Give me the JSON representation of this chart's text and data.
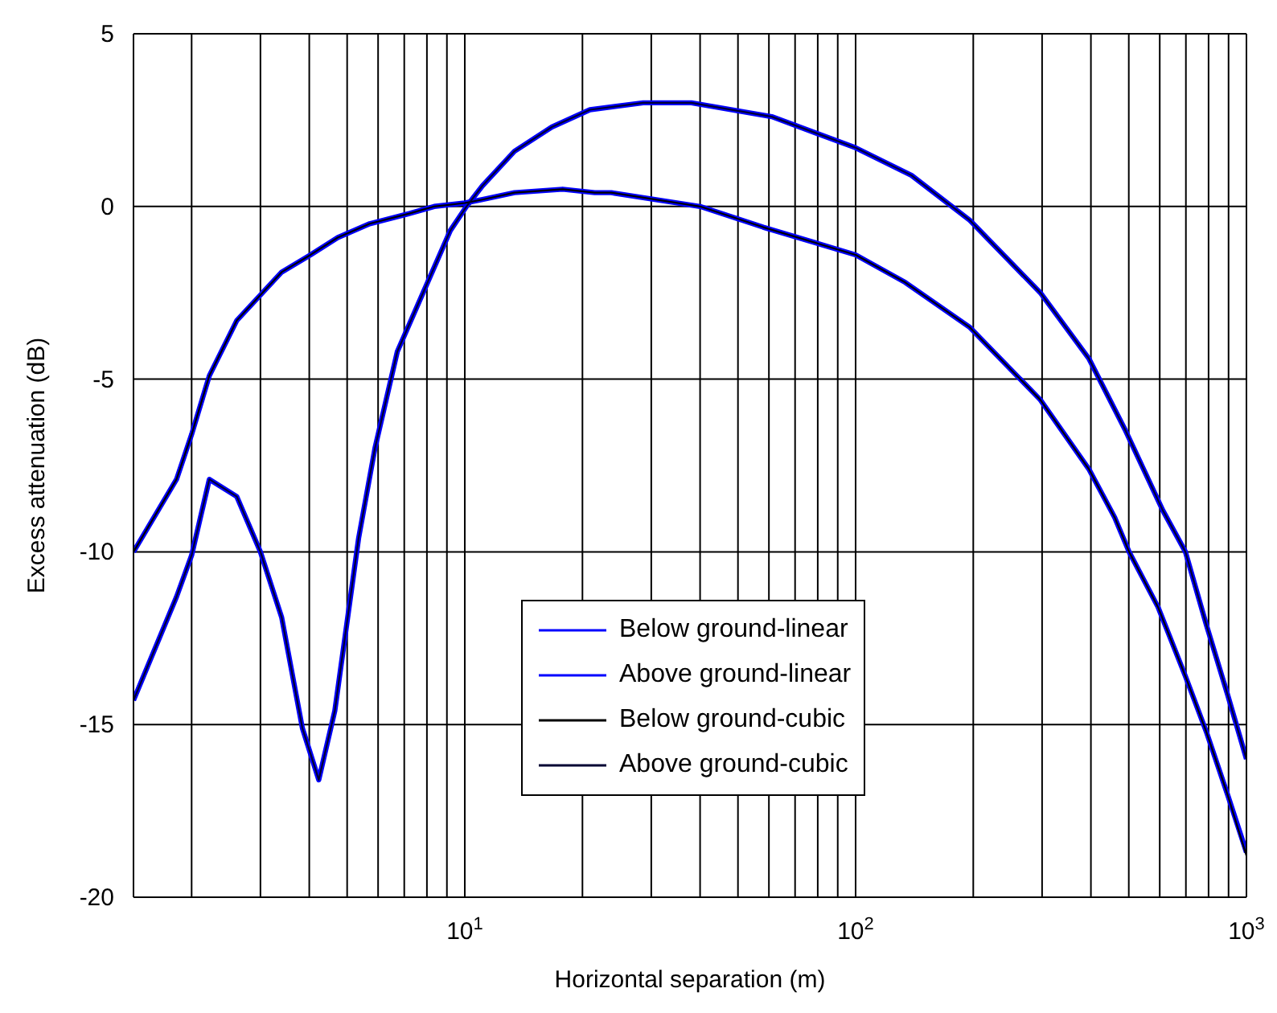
{
  "chart_data": {
    "type": "line",
    "xlabel": "Horizontal separation (m)",
    "ylabel": "Excess attenuation (dB)",
    "log": "x",
    "grid": true,
    "legend": "bottom",
    "line_style": "solid",
    "marker": "none",
    "xlim": [
      1.42,
      1000
    ],
    "ylim": [
      -20,
      5
    ],
    "yticks": [
      -20,
      -15,
      -10,
      -5,
      0,
      5
    ],
    "xticks": [
      {
        "value": 2,
        "label": null
      },
      {
        "value": 3,
        "label": null
      },
      {
        "value": 4,
        "label": null
      },
      {
        "value": 5,
        "label": null
      },
      {
        "value": 6,
        "label": null
      },
      {
        "value": 7,
        "label": null
      },
      {
        "value": 8,
        "label": null
      },
      {
        "value": 9,
        "label": null
      },
      {
        "value": 10,
        "label": "10$^{1}$"
      },
      {
        "value": 20,
        "label": null
      },
      {
        "value": 30,
        "label": null
      },
      {
        "value": 40,
        "label": null
      },
      {
        "value": 50,
        "label": null
      },
      {
        "value": 60,
        "label": null
      },
      {
        "value": 70,
        "label": null
      },
      {
        "value": 80,
        "label": null
      },
      {
        "value": 90,
        "label": null
      },
      {
        "value": 100,
        "label": "10$^{2}$"
      },
      {
        "value": 200,
        "label": null
      },
      {
        "value": 300,
        "label": null
      },
      {
        "value": 400,
        "label": null
      },
      {
        "value": 500,
        "label": null
      },
      {
        "value": 600,
        "label": null
      },
      {
        "value": 700,
        "label": null
      },
      {
        "value": 800,
        "label": null
      },
      {
        "value": 900,
        "label": null
      },
      {
        "value": 1000,
        "label": "10$^{3}$"
      }
    ],
    "series": [
      {
        "name": "Below ground-linear",
        "color": "#0000ff",
        "x": [
          1.42,
          1.83,
          2,
          2.22,
          2.61,
          3.4,
          4.03,
          4.73,
          5.71,
          7.24,
          8.35,
          10,
          11.1,
          13.4,
          17.8,
          21.5,
          23.7,
          40,
          58,
          100,
          134,
          196,
          297,
          395,
          460,
          501,
          594,
          698,
          789,
          893,
          1000
        ],
        "values": [
          -10,
          -7.9,
          -6.6,
          -4.9,
          -3.3,
          -1.9,
          -1.4,
          -0.9,
          -0.5,
          -0.2,
          0,
          0.1,
          0.2,
          0.4,
          0.5,
          0.4,
          0.4,
          0,
          -0.6,
          -1.4,
          -2.2,
          -3.5,
          -5.6,
          -7.6,
          -9,
          -10,
          -11.6,
          -13.6,
          -15.2,
          -17,
          -18.7
        ]
      },
      {
        "name": "Above ground-linear",
        "color": "#0000ff",
        "x": [
          1.42,
          1.83,
          2,
          2.22,
          2.61,
          3,
          3.4,
          3.84,
          4.23,
          4.65,
          5.35,
          5.89,
          6.72,
          7.96,
          9.18,
          10.1,
          11.1,
          13.4,
          16.7,
          20.9,
          28.6,
          38,
          61,
          100,
          139,
          196,
          297,
          395,
          491,
          611,
          698,
          789,
          893,
          1000
        ],
        "values": [
          -14.3,
          -11.3,
          -10.1,
          -7.9,
          -8.4,
          -10,
          -11.9,
          -15.1,
          -16.6,
          -14.6,
          -9.6,
          -7,
          -4.2,
          -2.3,
          -0.7,
          0,
          0.6,
          1.6,
          2.3,
          2.8,
          3,
          3,
          2.6,
          1.7,
          0.9,
          -0.4,
          -2.5,
          -4.4,
          -6.5,
          -8.8,
          -10,
          -12.1,
          -14.1,
          -16
        ]
      },
      {
        "name": "Below ground-cubic",
        "color": "#000000",
        "x": [
          1.42,
          1.83,
          2,
          2.22,
          2.61,
          3.4,
          4.03,
          4.73,
          5.71,
          7.24,
          8.35,
          10,
          11.1,
          13.4,
          17.8,
          21.5,
          23.7,
          40,
          58,
          100,
          134,
          196,
          297,
          395,
          460,
          501,
          594,
          698,
          789,
          893,
          1000
        ],
        "values": [
          -10,
          -7.9,
          -6.6,
          -4.9,
          -3.3,
          -1.9,
          -1.4,
          -0.9,
          -0.5,
          -0.2,
          0,
          0.1,
          0.2,
          0.4,
          0.5,
          0.4,
          0.4,
          0,
          -0.6,
          -1.4,
          -2.2,
          -3.5,
          -5.6,
          -7.6,
          -9,
          -10,
          -11.6,
          -13.6,
          -15.2,
          -17,
          -18.8
        ]
      },
      {
        "name": "Above ground-cubic",
        "color": "#000033",
        "x": [
          1.42,
          1.83,
          2,
          2.22,
          2.61,
          3,
          3.4,
          3.84,
          4.23,
          4.65,
          5.35,
          5.89,
          6.72,
          7.96,
          9.18,
          10.1,
          11.1,
          13.4,
          16.7,
          20.9,
          28.6,
          38,
          61,
          100,
          139,
          196,
          297,
          395,
          491,
          611,
          698,
          789,
          893,
          1000
        ],
        "values": [
          -14.3,
          -11.3,
          -10.1,
          -7.9,
          -8.4,
          -10,
          -11.9,
          -15.1,
          -16.6,
          -14.6,
          -9.6,
          -7,
          -4.2,
          -2.3,
          -0.7,
          0,
          0.6,
          1.6,
          2.3,
          2.8,
          3,
          3,
          2.6,
          1.7,
          0.9,
          -0.4,
          -2.5,
          -4.4,
          -6.5,
          -8.8,
          -10,
          -12.1,
          -14.1,
          -16
        ]
      }
    ]
  }
}
